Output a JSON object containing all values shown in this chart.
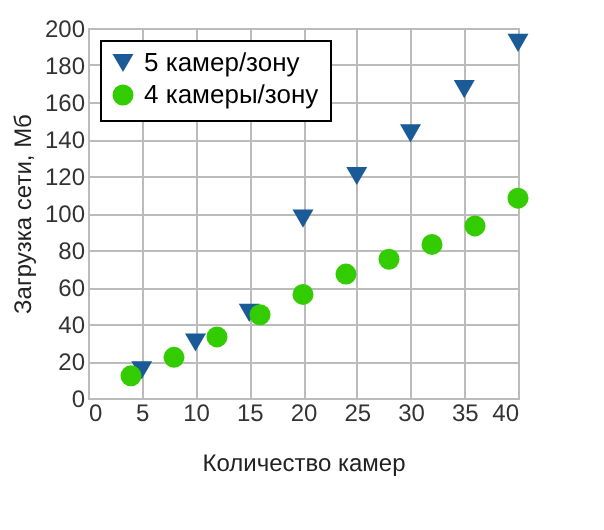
{
  "chart_data": {
    "type": "scatter",
    "xlabel": "Количество камер",
    "ylabel": "Загрузка сети, Мб",
    "series": [
      {
        "name": "5 камер/зону",
        "color": "#1a5a96",
        "marker": "triangle",
        "x": [
          5,
          10,
          15,
          20,
          25,
          30,
          35,
          40
        ],
        "values": [
          15,
          30,
          46,
          97,
          120,
          143,
          167,
          192
        ]
      },
      {
        "name": "4 камеры/зону",
        "color": "#33cc00",
        "marker": "circle",
        "x": [
          4,
          8,
          12,
          16,
          20,
          24,
          28,
          32,
          36,
          40
        ],
        "values": [
          12,
          22,
          33,
          45,
          56,
          67,
          75,
          83,
          93,
          108
        ]
      }
    ],
    "xlim": [
      0,
      40
    ],
    "xticks": [
      0,
      5,
      10,
      15,
      20,
      25,
      30,
      35,
      40
    ],
    "ylim": [
      0,
      200
    ],
    "yticks": [
      0,
      20,
      40,
      60,
      80,
      100,
      120,
      140,
      160,
      180,
      200
    ],
    "grid": true,
    "legend": "top left"
  }
}
